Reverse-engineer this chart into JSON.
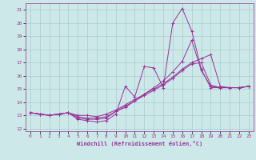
{
  "xlabel": "Windchill (Refroidissement éolien,°C)",
  "background_color": "#cce8e8",
  "grid_color": "#aacccc",
  "line_color": "#993399",
  "xlim": [
    -0.5,
    23.5
  ],
  "ylim": [
    11.8,
    21.5
  ],
  "xticks": [
    0,
    1,
    2,
    3,
    4,
    5,
    6,
    7,
    8,
    9,
    10,
    11,
    12,
    13,
    14,
    15,
    16,
    17,
    18,
    19,
    20,
    21,
    22,
    23
  ],
  "yticks": [
    12,
    13,
    14,
    15,
    16,
    17,
    18,
    19,
    20,
    21
  ],
  "line1_x": [
    0,
    1,
    2,
    3,
    4,
    5,
    6,
    7,
    8,
    9,
    10,
    11,
    12,
    13,
    14,
    15,
    16,
    17,
    18,
    19,
    20,
    21,
    22,
    23
  ],
  "line1_y": [
    13.2,
    13.1,
    13.0,
    13.1,
    13.2,
    12.7,
    12.6,
    12.5,
    12.6,
    13.1,
    15.2,
    14.4,
    16.7,
    16.6,
    15.1,
    20.0,
    21.1,
    19.4,
    16.5,
    15.1,
    15.1,
    15.1,
    15.1,
    15.2
  ],
  "line2_x": [
    0,
    1,
    2,
    3,
    4,
    5,
    6,
    7,
    8,
    9,
    10,
    11,
    12,
    13,
    14,
    15,
    16,
    17,
    18,
    19,
    20,
    21,
    22,
    23
  ],
  "line2_y": [
    13.2,
    13.1,
    13.0,
    13.1,
    13.2,
    12.8,
    12.7,
    12.7,
    12.8,
    13.3,
    13.6,
    14.1,
    14.6,
    15.1,
    15.6,
    16.3,
    17.1,
    18.7,
    16.4,
    15.2,
    15.1,
    15.1,
    15.1,
    15.2
  ],
  "line3_x": [
    0,
    1,
    2,
    3,
    4,
    5,
    6,
    7,
    8,
    9,
    10,
    11,
    12,
    13,
    14,
    15,
    16,
    17,
    18,
    19,
    20,
    21,
    22,
    23
  ],
  "line3_y": [
    13.2,
    13.1,
    13.0,
    13.1,
    13.2,
    12.9,
    12.8,
    12.8,
    12.9,
    13.3,
    13.7,
    14.1,
    14.5,
    14.9,
    15.3,
    15.8,
    16.4,
    16.9,
    17.0,
    15.3,
    15.1,
    15.1,
    15.1,
    15.2
  ],
  "line4_x": [
    0,
    1,
    2,
    3,
    4,
    5,
    6,
    7,
    8,
    9,
    10,
    11,
    12,
    13,
    14,
    15,
    16,
    17,
    18,
    19,
    20,
    21,
    22,
    23
  ],
  "line4_y": [
    13.2,
    13.1,
    13.0,
    13.1,
    13.2,
    13.0,
    13.0,
    12.9,
    13.1,
    13.4,
    13.8,
    14.2,
    14.6,
    15.0,
    15.4,
    15.9,
    16.5,
    17.0,
    17.3,
    17.6,
    15.2,
    15.1,
    15.1,
    15.2
  ]
}
